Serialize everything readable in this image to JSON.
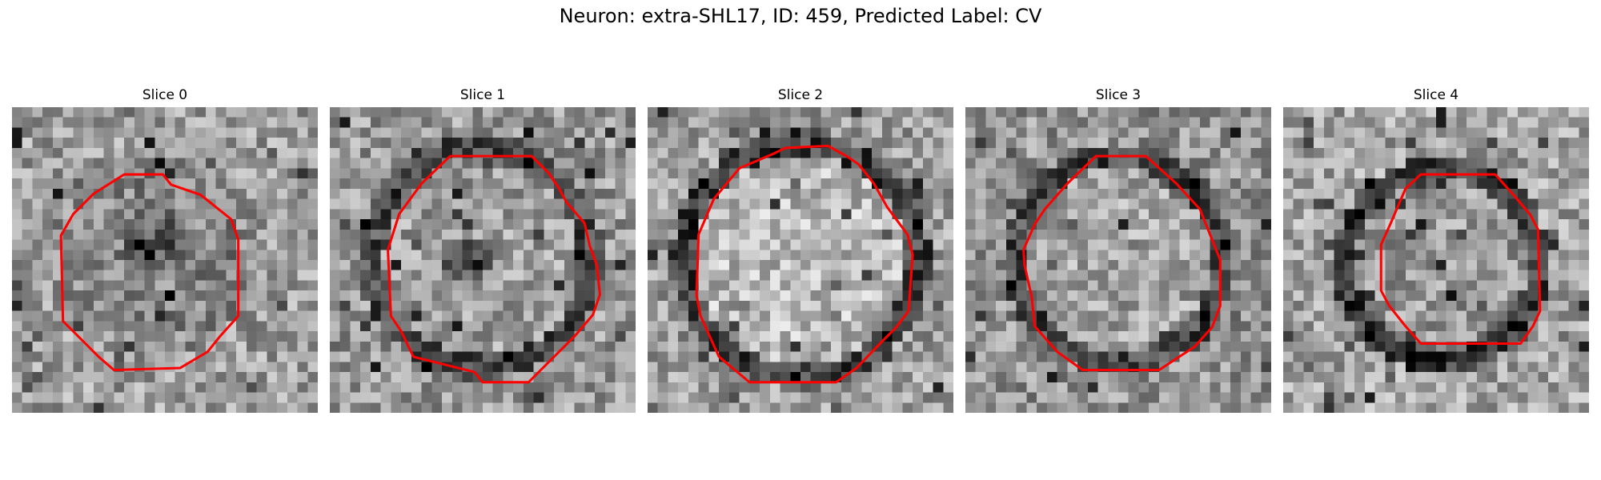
{
  "figure": {
    "title": "Neuron: extra-SHL17, ID: 459, Predicted Label: CV"
  },
  "contour_color": "#ff0000",
  "panels": [
    {
      "title": "Slice 0"
    },
    {
      "title": "Slice 1"
    },
    {
      "title": "Slice 2"
    },
    {
      "title": "Slice 3"
    },
    {
      "title": "Slice 4"
    }
  ]
}
